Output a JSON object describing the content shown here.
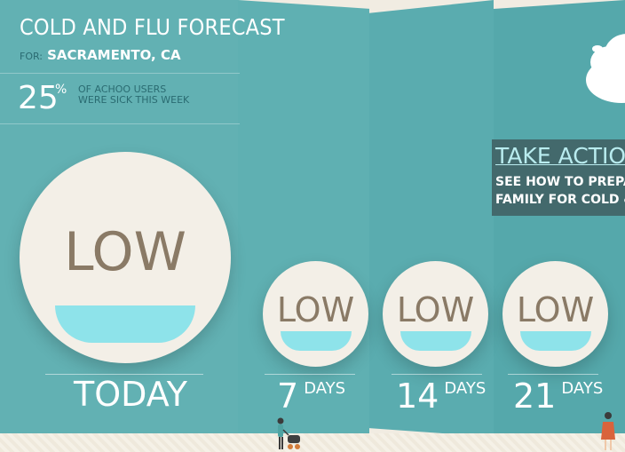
{
  "header": {
    "title": "COLD AND FLU FORECAST",
    "for_label": "FOR:",
    "city": "SACRAMENTO, CA"
  },
  "stat": {
    "number": "25",
    "unit": "%",
    "line1": "OF ACHOO USERS",
    "line2": "WERE SICK THIS WEEK"
  },
  "forecast": {
    "today": {
      "level": "LOW",
      "label": "TODAY"
    },
    "d7": {
      "level": "LOW",
      "number": "7",
      "unit": "DAYS"
    },
    "d14": {
      "level": "LOW",
      "number": "14",
      "unit": "DAYS"
    },
    "d21": {
      "level": "LOW",
      "number": "21",
      "unit": "DAYS"
    }
  },
  "action": {
    "title": "TAKE ACTION",
    "line1": "SEE HOW TO PREPAR",
    "line2": "FAMILY FOR COLD & F"
  },
  "colors": {
    "panel": "#62b1b3",
    "circle": "#f3efe7",
    "level_text": "#8a7a66",
    "wave": "#8ee3ea",
    "action_bg": "#43696c"
  }
}
